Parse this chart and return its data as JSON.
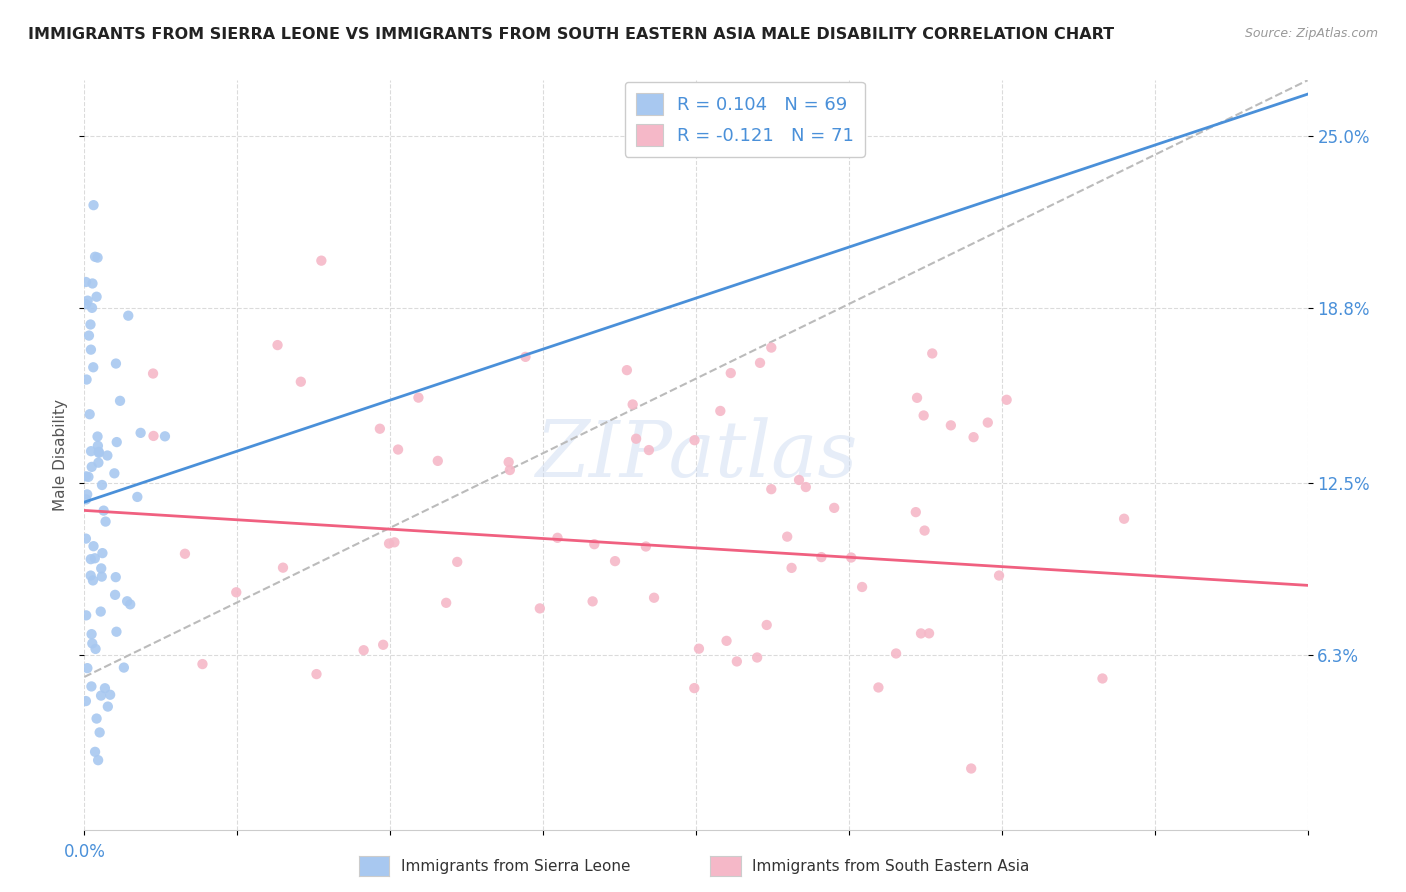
{
  "title": "IMMIGRANTS FROM SIERRA LEONE VS IMMIGRANTS FROM SOUTH EASTERN ASIA MALE DISABILITY CORRELATION CHART",
  "source": "Source: ZipAtlas.com",
  "ylabel": "Male Disability",
  "ytick_labels": [
    "25.0%",
    "18.8%",
    "12.5%",
    "6.3%"
  ],
  "ytick_values": [
    0.25,
    0.188,
    0.125,
    0.063
  ],
  "color_blue": "#a8c8f0",
  "color_pink": "#f5b8c8",
  "color_blue_dark": "#4a90d9",
  "color_pink_dark": "#f06080",
  "color_dashed": "#bbbbbb",
  "watermark": "ZIPatlas",
  "xmin": 0.0,
  "xmax": 0.8,
  "ymin": 0.0,
  "ymax": 0.27,
  "blue_trend": [
    0.118,
    0.265
  ],
  "pink_trend": [
    0.115,
    0.088
  ],
  "dashed_trend": [
    0.055,
    0.27
  ]
}
